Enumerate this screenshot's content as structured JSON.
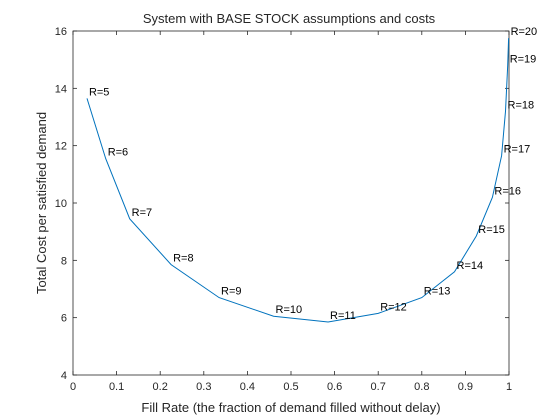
{
  "chart_data": {
    "type": "line",
    "title": "System with BASE STOCK assumptions and costs",
    "xlabel": "Fill Rate (the fraction of demand filled without delay)",
    "ylabel": "Total Cost per satisfied demand",
    "xlim": [
      0,
      1
    ],
    "ylim": [
      4,
      16
    ],
    "xticks": [
      "0",
      "0.1",
      "0.2",
      "0.3",
      "0.4",
      "0.5",
      "0.6",
      "0.7",
      "0.8",
      "0.9",
      "1"
    ],
    "yticks": [
      "4",
      "6",
      "8",
      "10",
      "12",
      "14",
      "16"
    ],
    "grid": false,
    "line_color": "#0072BD",
    "points": [
      {
        "label": "R=5",
        "x": 0.032,
        "y": 13.65
      },
      {
        "label": "R=6",
        "x": 0.075,
        "y": 11.55
      },
      {
        "label": "R=7",
        "x": 0.13,
        "y": 9.45
      },
      {
        "label": "R=8",
        "x": 0.225,
        "y": 7.85
      },
      {
        "label": "R=9",
        "x": 0.335,
        "y": 6.7
      },
      {
        "label": "R=10",
        "x": 0.46,
        "y": 6.05
      },
      {
        "label": "R=11",
        "x": 0.585,
        "y": 5.85
      },
      {
        "label": "R=12",
        "x": 0.7,
        "y": 6.15
      },
      {
        "label": "R=13",
        "x": 0.8,
        "y": 6.7
      },
      {
        "label": "R=14",
        "x": 0.875,
        "y": 7.6
      },
      {
        "label": "R=15",
        "x": 0.925,
        "y": 8.85
      },
      {
        "label": "R=16",
        "x": 0.962,
        "y": 10.2
      },
      {
        "label": "R=17",
        "x": 0.983,
        "y": 11.65
      },
      {
        "label": "R=18",
        "x": 0.992,
        "y": 13.2
      },
      {
        "label": "R=19",
        "x": 0.997,
        "y": 14.8
      },
      {
        "label": "R=20",
        "x": 0.999,
        "y": 15.75
      }
    ]
  }
}
